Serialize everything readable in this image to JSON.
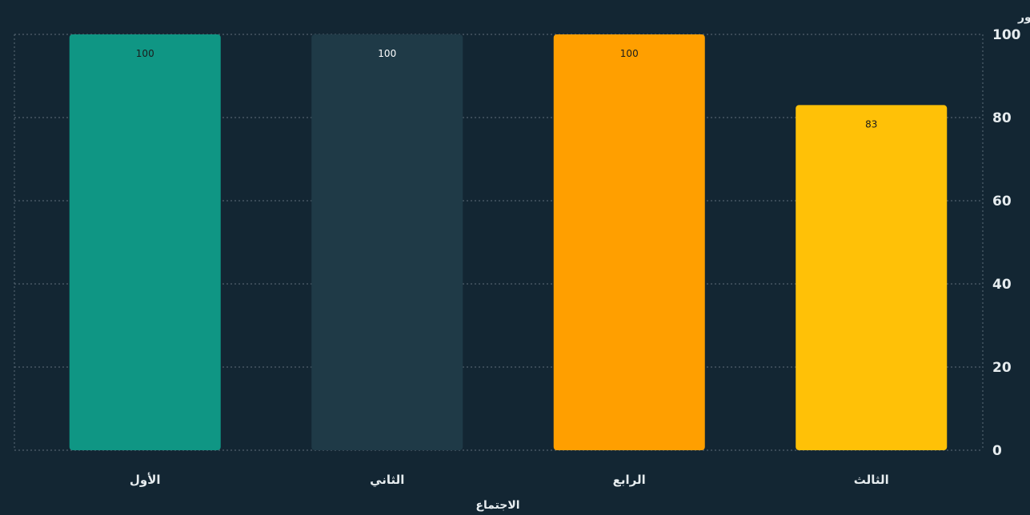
{
  "chart_data": {
    "type": "bar",
    "categories": [
      "الأول",
      "الثاني",
      "الرابع",
      "الثالث"
    ],
    "values": [
      100,
      100,
      100,
      83
    ],
    "data_labels": [
      "100",
      "100",
      "100",
      "83"
    ],
    "colors": [
      "#0f9684",
      "#1f3a47",
      "#ff9f00",
      "#ffc107"
    ],
    "label_colors": [
      "#1b1b1b",
      "#ffffff",
      "#1b1b1b",
      "#1b1b1b"
    ],
    "xlabel": "الاجتماع",
    "ylabel": "(%) نسبة الحضور",
    "ylim": [
      0,
      100
    ],
    "yticks": [
      0,
      20,
      40,
      60,
      80,
      100
    ],
    "ytick_labels": [
      "0",
      "20",
      "40",
      "60",
      "80",
      "100"
    ],
    "y_axis_side": "right",
    "grid": true,
    "background": "#132633",
    "grid_color": "#51616d"
  }
}
